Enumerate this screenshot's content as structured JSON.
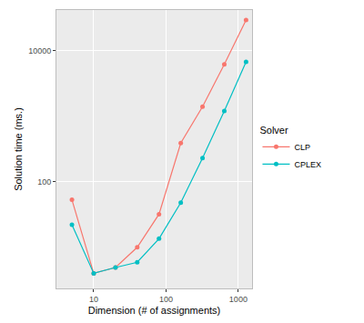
{
  "chart_data": {
    "type": "line",
    "x_label": "Dimension (# of assignments)",
    "y_label": "Solution time (ms.)",
    "legend_title": "Solver",
    "x": [
      5,
      10,
      20,
      40,
      80,
      160,
      320,
      640,
      1280
    ],
    "series": [
      {
        "name": "CLP",
        "color": "#F8766D",
        "values": [
          53,
          4,
          4.9,
          10,
          32,
          390,
          1400,
          6200,
          29500
        ]
      },
      {
        "name": "CPLEX",
        "color": "#00BFC4",
        "values": [
          22,
          4,
          4.9,
          5.9,
          13.5,
          48,
          230,
          1200,
          6800
        ]
      }
    ],
    "xlim": [
      3.05,
      1550
    ],
    "ylim": [
      2.35,
      42000
    ],
    "xticks": [
      10,
      100,
      1000
    ],
    "yticks": [
      100,
      10000
    ],
    "log": true,
    "grid": true,
    "legend": "right",
    "marker": "circle"
  }
}
